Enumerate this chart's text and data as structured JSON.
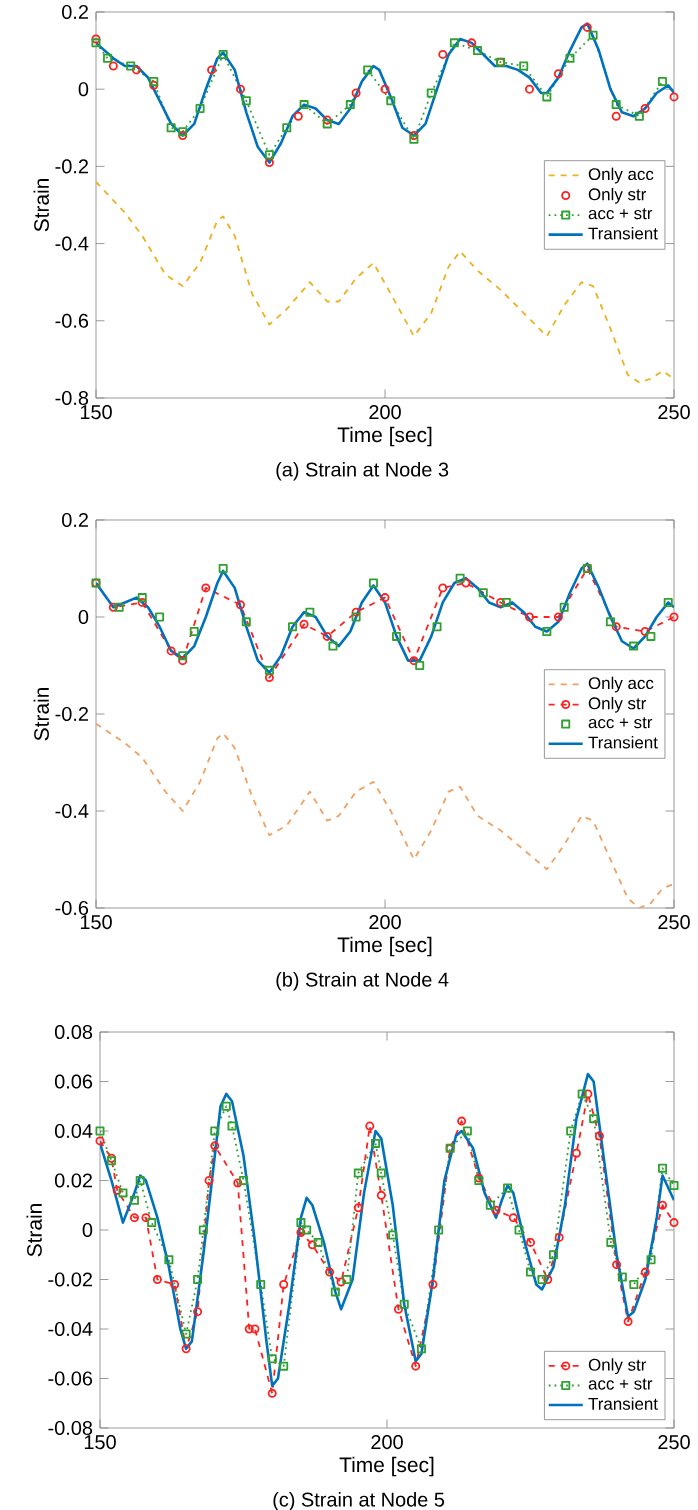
{
  "chart_data": [
    {
      "type": "line",
      "title": "(a)  Strain at Node 3",
      "xlabel": "Time [sec]",
      "ylabel": "Strain",
      "xlim": [
        150,
        250
      ],
      "ylim": [
        -0.8,
        0.2
      ],
      "xticks": [
        150,
        200,
        250
      ],
      "yticks": [
        -0.8,
        -0.6,
        -0.4,
        -0.2,
        0,
        0.2
      ],
      "legend": "right",
      "series": [
        {
          "name": "Only acc",
          "color": "#edb120",
          "line_style": "dashed",
          "marker": "none",
          "x": [
            150,
            155,
            158,
            162,
            165,
            168,
            171,
            172,
            174,
            177,
            180,
            183,
            187,
            190,
            192,
            195,
            198,
            201,
            205,
            208,
            211,
            213,
            216,
            220,
            224,
            228,
            231,
            234,
            236,
            239,
            242,
            244,
            246,
            248,
            250
          ],
          "values": [
            -0.24,
            -0.32,
            -0.38,
            -0.48,
            -0.51,
            -0.45,
            -0.34,
            -0.33,
            -0.38,
            -0.53,
            -0.61,
            -0.57,
            -0.5,
            -0.55,
            -0.55,
            -0.49,
            -0.45,
            -0.53,
            -0.64,
            -0.58,
            -0.46,
            -0.42,
            -0.47,
            -0.52,
            -0.58,
            -0.64,
            -0.56,
            -0.5,
            -0.51,
            -0.62,
            -0.74,
            -0.76,
            -0.75,
            -0.73,
            -0.75
          ]
        },
        {
          "name": "Only str",
          "type": "scatter",
          "color": "#ff2020",
          "marker": "circle",
          "x": [
            150,
            153,
            157,
            160,
            165,
            170,
            175,
            180,
            185,
            190,
            195,
            200,
            205,
            210,
            215,
            220,
            225,
            230,
            235,
            240,
            245,
            250
          ],
          "values": [
            0.13,
            0.06,
            0.05,
            0.01,
            -0.12,
            0.05,
            0.0,
            -0.19,
            -0.07,
            -0.08,
            -0.01,
            0.0,
            -0.12,
            0.09,
            0.12,
            0.07,
            0.0,
            0.04,
            0.16,
            -0.07,
            -0.05,
            -0.02
          ]
        },
        {
          "name": "acc + str",
          "color": "#30a030",
          "line_style": "dotted",
          "marker": "square",
          "x": [
            150,
            152,
            156,
            160,
            163,
            165,
            168,
            172,
            176,
            180,
            183,
            186,
            190,
            194,
            197,
            201,
            205,
            208,
            212,
            216,
            220,
            224,
            228,
            232,
            236,
            240,
            244,
            248
          ],
          "values": [
            0.12,
            0.08,
            0.06,
            0.02,
            -0.1,
            -0.11,
            -0.05,
            0.09,
            -0.03,
            -0.17,
            -0.1,
            -0.04,
            -0.09,
            -0.04,
            0.05,
            -0.03,
            -0.13,
            -0.01,
            0.12,
            0.1,
            0.07,
            0.06,
            -0.02,
            0.08,
            0.14,
            -0.04,
            -0.07,
            0.02
          ]
        },
        {
          "name": "Transient",
          "color": "#0072bd",
          "line_style": "solid",
          "marker": "none",
          "x": [
            150,
            153,
            155,
            157,
            159,
            161,
            163,
            165,
            167,
            169,
            171,
            172,
            174,
            176,
            178,
            180,
            182,
            184,
            186,
            188,
            190,
            192,
            194,
            196,
            198,
            199,
            201,
            203,
            205,
            207,
            209,
            211,
            213,
            215,
            217,
            219,
            221,
            223,
            225,
            227,
            228,
            230,
            232,
            234,
            235,
            237,
            239,
            241,
            243,
            245,
            247,
            249,
            250
          ],
          "values": [
            0.12,
            0.08,
            0.06,
            0.06,
            0.03,
            -0.03,
            -0.09,
            -0.12,
            -0.09,
            0.0,
            0.08,
            0.095,
            0.05,
            -0.06,
            -0.15,
            -0.19,
            -0.14,
            -0.07,
            -0.04,
            -0.05,
            -0.08,
            -0.09,
            -0.05,
            0.02,
            0.06,
            0.05,
            -0.02,
            -0.1,
            -0.12,
            -0.09,
            0.0,
            0.09,
            0.13,
            0.12,
            0.09,
            0.06,
            0.06,
            0.05,
            0.03,
            -0.01,
            -0.01,
            0.03,
            0.1,
            0.16,
            0.17,
            0.1,
            0.0,
            -0.06,
            -0.07,
            -0.05,
            -0.01,
            0.01,
            -0.01
          ]
        }
      ]
    },
    {
      "type": "line",
      "title": "(b)  Strain at Node 4",
      "xlabel": "Time [sec]",
      "ylabel": "Strain",
      "xlim": [
        150,
        250
      ],
      "ylim": [
        -0.6,
        0.2
      ],
      "xticks": [
        150,
        200,
        250
      ],
      "yticks": [
        -0.6,
        -0.4,
        -0.2,
        0,
        0.2
      ],
      "legend": "right",
      "series": [
        {
          "name": "Only acc",
          "color": "#f0a060",
          "line_style": "dashed",
          "marker": "none",
          "x": [
            150,
            155,
            158,
            162,
            165,
            168,
            171,
            172,
            174,
            177,
            180,
            183,
            187,
            190,
            192,
            195,
            198,
            201,
            205,
            208,
            211,
            213,
            216,
            220,
            224,
            228,
            231,
            234,
            236,
            239,
            242,
            244,
            246,
            248,
            250
          ],
          "values": [
            -0.22,
            -0.26,
            -0.29,
            -0.36,
            -0.4,
            -0.34,
            -0.25,
            -0.24,
            -0.27,
            -0.37,
            -0.45,
            -0.43,
            -0.36,
            -0.42,
            -0.41,
            -0.36,
            -0.34,
            -0.4,
            -0.5,
            -0.44,
            -0.36,
            -0.35,
            -0.41,
            -0.44,
            -0.48,
            -0.52,
            -0.47,
            -0.41,
            -0.42,
            -0.5,
            -0.58,
            -0.6,
            -0.59,
            -0.56,
            -0.55
          ]
        },
        {
          "name": "Only str",
          "color": "#ff2020",
          "line_style": "dashed",
          "marker": "circle",
          "x": [
            150,
            153,
            158,
            163,
            165,
            169,
            175,
            180,
            186,
            190,
            195,
            200,
            205,
            210,
            214,
            220,
            225,
            230,
            235,
            240,
            245,
            250
          ],
          "values": [
            0.07,
            0.02,
            0.03,
            -0.07,
            -0.09,
            0.06,
            0.025,
            -0.125,
            -0.015,
            -0.04,
            0.01,
            0.04,
            -0.09,
            0.06,
            0.07,
            0.03,
            0.0,
            0.0,
            0.1,
            -0.02,
            -0.03,
            0.0
          ]
        },
        {
          "name": "acc + str",
          "type": "scatter",
          "color": "#30a030",
          "marker": "square",
          "x": [
            150,
            154,
            158,
            161,
            165,
            167,
            172,
            176,
            180,
            184,
            187,
            191,
            195,
            198,
            202,
            206,
            209,
            213,
            217,
            221,
            228,
            231,
            235,
            239,
            243,
            246,
            249
          ],
          "values": [
            0.07,
            0.02,
            0.04,
            0.0,
            -0.08,
            -0.03,
            0.1,
            -0.01,
            -0.11,
            -0.02,
            0.01,
            -0.06,
            0.0,
            0.07,
            -0.04,
            -0.1,
            -0.02,
            0.08,
            0.05,
            0.03,
            -0.03,
            0.02,
            0.1,
            -0.01,
            -0.06,
            -0.04,
            0.03
          ]
        },
        {
          "name": "Transient",
          "color": "#0072bd",
          "line_style": "solid",
          "marker": "none",
          "x": [
            150,
            153,
            155,
            157,
            159,
            161,
            163,
            165,
            167,
            169,
            171,
            172,
            174,
            176,
            178,
            180,
            182,
            184,
            186,
            188,
            190,
            192,
            194,
            196,
            198,
            200,
            202,
            204,
            206,
            208,
            210,
            212,
            214,
            216,
            218,
            220,
            222,
            224,
            226,
            228,
            230,
            232,
            234,
            235,
            237,
            239,
            241,
            243,
            245,
            247,
            249,
            250
          ],
          "values": [
            0.07,
            0.02,
            0.03,
            0.04,
            0.02,
            -0.02,
            -0.07,
            -0.085,
            -0.06,
            0.0,
            0.07,
            0.095,
            0.06,
            -0.02,
            -0.09,
            -0.115,
            -0.08,
            -0.02,
            0.01,
            0.0,
            -0.04,
            -0.06,
            -0.03,
            0.03,
            0.065,
            0.03,
            -0.04,
            -0.09,
            -0.09,
            -0.04,
            0.03,
            0.07,
            0.08,
            0.06,
            0.03,
            0.02,
            0.03,
            0.01,
            -0.02,
            -0.03,
            -0.01,
            0.05,
            0.1,
            0.11,
            0.06,
            0.0,
            -0.05,
            -0.065,
            -0.04,
            0.0,
            0.03,
            0.02
          ]
        }
      ]
    },
    {
      "type": "line",
      "title": "(c)  Strain at Node 5",
      "xlabel": "Time [sec]",
      "ylabel": "Strain",
      "xlim": [
        150,
        250
      ],
      "ylim": [
        -0.08,
        0.08
      ],
      "xticks": [
        150,
        200,
        250
      ],
      "yticks": [
        -0.08,
        -0.06,
        -0.04,
        -0.02,
        0,
        0.02,
        0.04,
        0.06,
        0.08
      ],
      "legend": "bottom right",
      "series": [
        {
          "name": "Only str",
          "color": "#ff2020",
          "line_style": "dashed",
          "marker": "circle",
          "x": [
            150,
            152,
            153,
            156,
            158,
            160,
            163,
            165,
            167,
            169,
            170,
            174,
            176,
            177,
            180,
            182,
            185,
            187,
            190,
            192,
            195,
            197,
            199,
            202,
            205,
            208,
            211,
            213,
            216,
            219,
            222,
            225,
            228,
            230,
            233,
            235,
            237,
            240,
            242,
            245,
            248,
            250
          ],
          "values": [
            0.036,
            0.029,
            0.016,
            0.005,
            0.005,
            -0.02,
            -0.022,
            -0.048,
            -0.033,
            0.02,
            0.034,
            0.019,
            -0.04,
            -0.04,
            -0.066,
            -0.022,
            -0.001,
            -0.006,
            -0.017,
            -0.021,
            0.009,
            0.042,
            0.014,
            -0.032,
            -0.055,
            -0.022,
            0.033,
            0.044,
            0.021,
            0.008,
            0.005,
            -0.005,
            -0.02,
            -0.003,
            0.031,
            0.055,
            0.038,
            -0.014,
            -0.037,
            -0.017,
            0.01,
            0.003
          ]
        },
        {
          "name": "acc + str",
          "color": "#30a030",
          "line_style": "dotted",
          "marker": "square",
          "x": [
            150,
            152,
            154,
            156,
            157,
            159,
            162,
            165,
            167,
            168,
            170,
            172,
            173,
            175,
            178,
            180,
            182,
            185,
            186,
            188,
            191,
            193,
            195,
            198,
            199,
            201,
            203,
            206,
            209,
            211,
            214,
            216,
            218,
            221,
            223,
            225,
            227,
            229,
            232,
            234,
            236,
            239,
            241,
            243,
            246,
            248,
            250
          ],
          "values": [
            0.04,
            0.028,
            0.015,
            0.012,
            0.02,
            0.003,
            -0.012,
            -0.042,
            -0.02,
            0.0,
            0.04,
            0.05,
            0.042,
            0.02,
            -0.022,
            -0.052,
            -0.055,
            0.003,
            0.0,
            -0.005,
            -0.025,
            -0.02,
            0.023,
            0.035,
            0.023,
            -0.002,
            -0.03,
            -0.048,
            0.0,
            0.033,
            0.04,
            0.02,
            0.01,
            0.017,
            0.0,
            -0.017,
            -0.02,
            -0.01,
            0.04,
            0.055,
            0.045,
            -0.005,
            -0.019,
            -0.022,
            -0.012,
            0.025,
            0.018
          ]
        },
        {
          "name": "Transient",
          "color": "#0072bd",
          "line_style": "solid",
          "marker": "none",
          "x": [
            150,
            152,
            154,
            156,
            157,
            158,
            160,
            162,
            164,
            165,
            166,
            168,
            170,
            171,
            172,
            173,
            175,
            177,
            179,
            180,
            181,
            183,
            185,
            186,
            187,
            189,
            191,
            192,
            194,
            196,
            198,
            199,
            201,
            203,
            205,
            206,
            208,
            210,
            212,
            213,
            215,
            217,
            219,
            220,
            221,
            222,
            224,
            226,
            227,
            229,
            231,
            233,
            235,
            236,
            238,
            240,
            242,
            243,
            245,
            247,
            248,
            250
          ],
          "values": [
            0.035,
            0.02,
            0.003,
            0.015,
            0.022,
            0.02,
            0.005,
            -0.015,
            -0.04,
            -0.048,
            -0.045,
            -0.01,
            0.03,
            0.05,
            0.055,
            0.052,
            0.03,
            -0.005,
            -0.045,
            -0.063,
            -0.06,
            -0.03,
            0.005,
            0.013,
            0.01,
            -0.005,
            -0.025,
            -0.032,
            -0.02,
            0.015,
            0.04,
            0.037,
            0.01,
            -0.03,
            -0.053,
            -0.05,
            -0.02,
            0.02,
            0.038,
            0.04,
            0.033,
            0.015,
            0.005,
            0.012,
            0.018,
            0.015,
            -0.005,
            -0.022,
            -0.024,
            -0.015,
            0.01,
            0.045,
            0.063,
            0.06,
            0.025,
            -0.01,
            -0.035,
            -0.033,
            -0.02,
            0.005,
            0.022,
            0.012
          ]
        }
      ]
    }
  ]
}
